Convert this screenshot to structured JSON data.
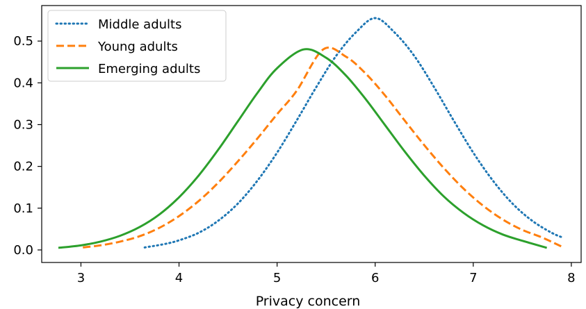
{
  "chart_data": {
    "type": "line",
    "title": "",
    "xlabel": "Privacy concern",
    "ylabel": "",
    "xlim": [
      2.6,
      8.1
    ],
    "ylim": [
      -0.03,
      0.585
    ],
    "xticks": [
      3,
      4,
      5,
      6,
      7,
      8
    ],
    "yticks": [
      0.0,
      0.1,
      0.2,
      0.3,
      0.4,
      0.5
    ],
    "ytick_labels": [
      "0.0",
      "0.1",
      "0.2",
      "0.3",
      "0.4",
      "0.5"
    ],
    "grid": false,
    "legend_position": "top-left",
    "series": [
      {
        "name": "Middle adults",
        "color": "#1f77b4",
        "linestyle": "dotted",
        "x": [
          3.65,
          3.85,
          4.0,
          4.2,
          4.4,
          4.6,
          4.8,
          5.0,
          5.2,
          5.4,
          5.6,
          5.8,
          6.0,
          6.2,
          6.4,
          6.6,
          6.8,
          7.0,
          7.2,
          7.4,
          7.6,
          7.8,
          7.92
        ],
        "y": [
          0.006,
          0.014,
          0.023,
          0.041,
          0.07,
          0.111,
          0.166,
          0.233,
          0.31,
          0.39,
          0.464,
          0.52,
          0.555,
          0.52,
          0.464,
          0.39,
          0.31,
          0.233,
          0.166,
          0.111,
          0.07,
          0.041,
          0.029
        ]
      },
      {
        "name": "Young adults",
        "color": "#ff7f0e",
        "linestyle": "dashed",
        "x": [
          3.02,
          3.2,
          3.4,
          3.6,
          3.8,
          4.0,
          4.2,
          4.4,
          4.6,
          4.8,
          5.0,
          5.2,
          5.47,
          5.7,
          5.9,
          6.1,
          6.3,
          6.5,
          6.7,
          6.9,
          7.1,
          7.3,
          7.5,
          7.7,
          7.92
        ],
        "y": [
          0.006,
          0.011,
          0.02,
          0.033,
          0.053,
          0.081,
          0.117,
          0.161,
          0.212,
          0.267,
          0.325,
          0.381,
          0.48,
          0.463,
          0.423,
          0.37,
          0.31,
          0.251,
          0.196,
          0.147,
          0.106,
          0.073,
          0.048,
          0.03,
          0.006
        ]
      },
      {
        "name": "Emerging adults",
        "color": "#2ca02c",
        "linestyle": "solid",
        "x": [
          2.77,
          3.0,
          3.2,
          3.4,
          3.6,
          3.8,
          4.0,
          4.2,
          4.4,
          4.6,
          4.8,
          5.0,
          5.27,
          5.5,
          5.7,
          5.9,
          6.1,
          6.3,
          6.5,
          6.7,
          6.9,
          7.1,
          7.3,
          7.5,
          7.75
        ],
        "y": [
          0.005,
          0.011,
          0.02,
          0.034,
          0.055,
          0.085,
          0.126,
          0.178,
          0.24,
          0.308,
          0.376,
          0.435,
          0.48,
          0.46,
          0.418,
          0.362,
          0.299,
          0.236,
          0.178,
          0.128,
          0.089,
          0.059,
          0.037,
          0.022,
          0.005
        ]
      }
    ]
  }
}
